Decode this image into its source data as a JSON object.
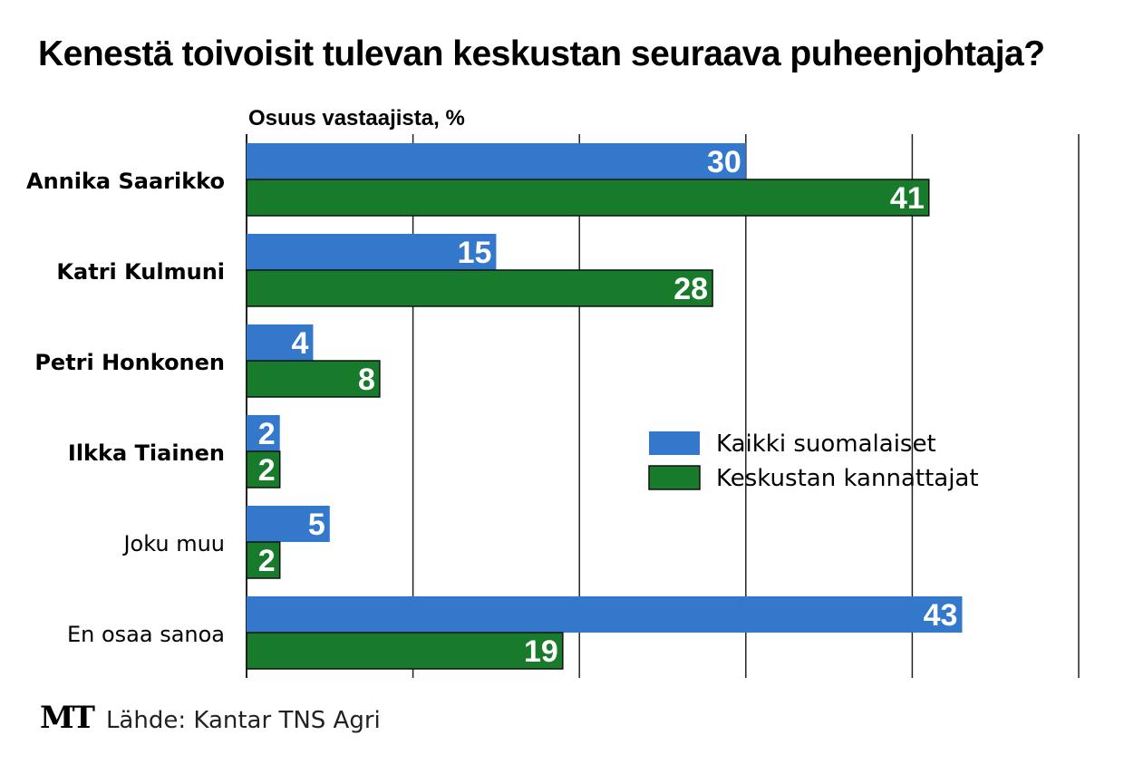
{
  "brand": {
    "logo_text": "MT"
  },
  "source": "Lähde: Kantar TNS Agri",
  "colors": {
    "series_all": "#3478CC",
    "series_keskusta": "#177B2B",
    "grid": "#222222",
    "bar_outline": "#111111",
    "value_label": "#ffffff"
  },
  "chart_data": {
    "type": "bar",
    "orientation": "horizontal",
    "title": "Kenestä toivoisit tulevan keskustan seuraava puheenjohtaja?",
    "subtitle": "Osuus vastaajista, %",
    "categories": [
      "Annika Saarikko",
      "Katri Kulmuni",
      "Petri Honkonen",
      "Ilkka Tiainen",
      "Joku muu",
      "En osaa sanoa"
    ],
    "bold_categories": [
      "Annika Saarikko",
      "Katri Kulmuni",
      "Petri Honkonen",
      "Ilkka Tiainen"
    ],
    "series": [
      {
        "name": "Kaikki suomalaiset",
        "values": [
          30,
          15,
          4,
          2,
          5,
          43
        ]
      },
      {
        "name": "Keskustan kannattajat",
        "values": [
          41,
          28,
          8,
          2,
          2,
          19
        ]
      }
    ],
    "xlim": [
      0,
      50
    ],
    "gridlines": [
      0,
      10,
      20,
      30,
      40,
      50
    ],
    "legend_position": "center-right",
    "tick_labels_shown": false
  }
}
